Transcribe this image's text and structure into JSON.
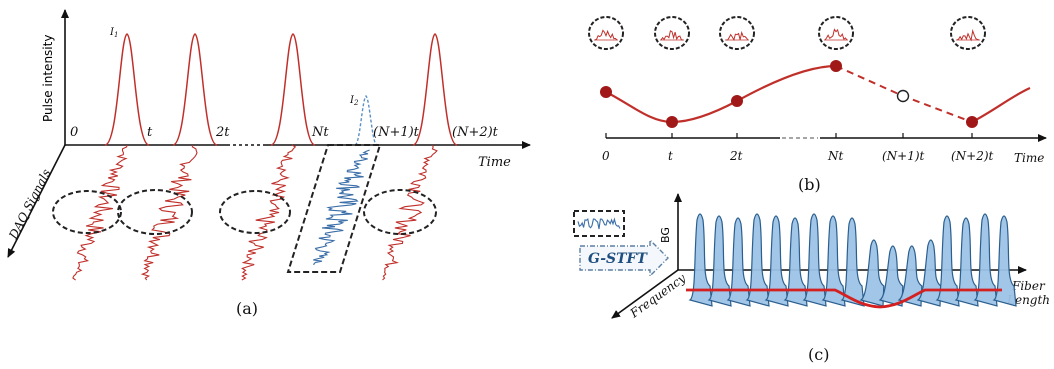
{
  "panel_a": {
    "caption": "(a)",
    "y_axis_label": "Pulse intensity",
    "x_axis_label": "Time",
    "depth_axis_label": "DAQ Signals",
    "time_labels": [
      "0",
      "t",
      "2t",
      "Nt",
      "(N+1)t",
      "(N+2)t"
    ],
    "pulse_label_1": "I",
    "pulse_label_1_sub": "1",
    "pulse_label_2": "I",
    "pulse_label_2_sub": "2",
    "colors": {
      "pulse": "#c0302b",
      "missing": "#3a6ea8"
    }
  },
  "panel_b": {
    "caption": "(b)",
    "x_axis_label": "Time",
    "time_labels": [
      "0",
      "t",
      "2t",
      "Nt",
      "(N+1)t",
      "(N+2)t"
    ],
    "colors": {
      "curve": "#c0302b",
      "point": "#9e1b1b"
    }
  },
  "panel_c": {
    "caption": "(c)",
    "method_label": "G-STFT",
    "y_axis_label": "BG",
    "x_axis_label_line1": "Fiber",
    "x_axis_label_line2": "Length",
    "depth_axis_label": "Frequency",
    "colors": {
      "spectrum_fill": "#9cc3e6",
      "spectrum_edge": "#2c5f8e",
      "bfs_line": "#d42020"
    }
  }
}
